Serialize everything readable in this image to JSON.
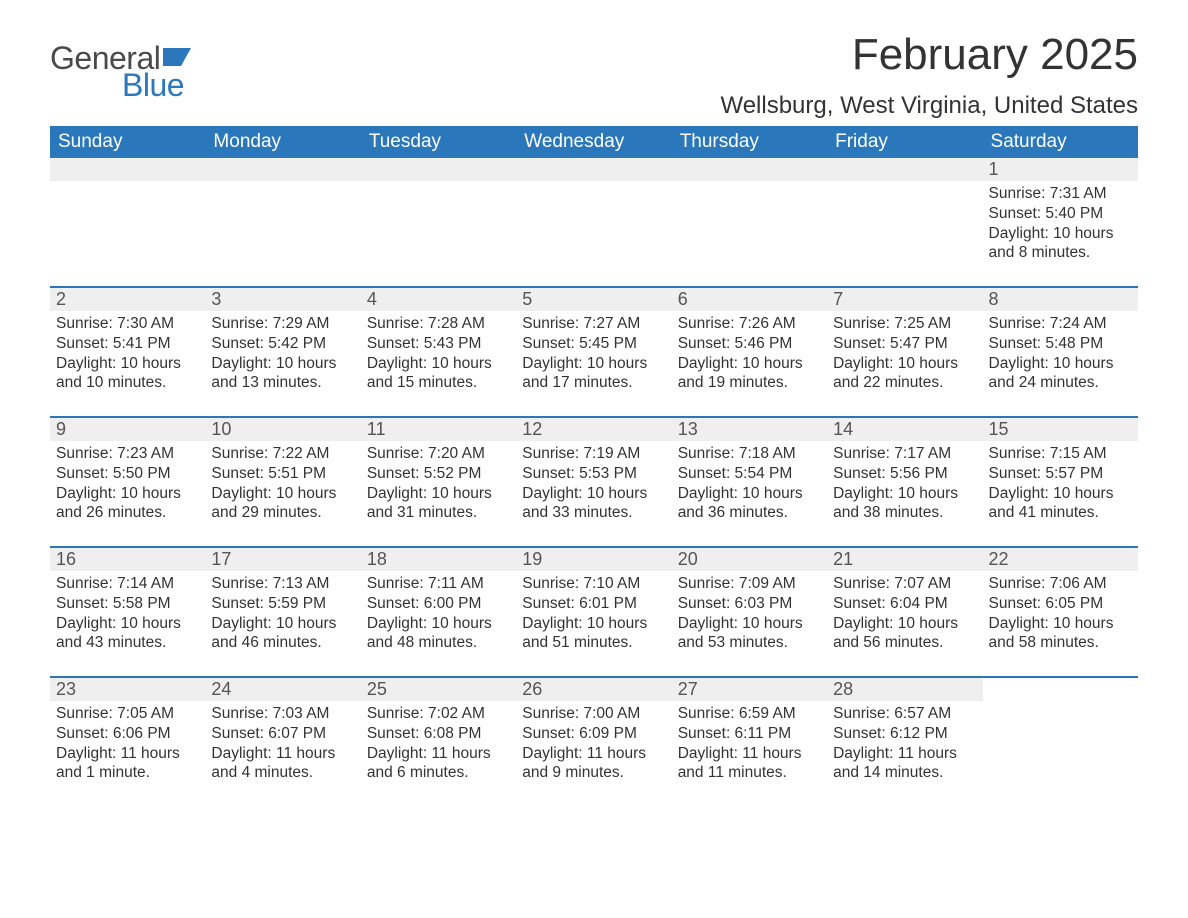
{
  "logo": {
    "general": "General",
    "blue": "Blue"
  },
  "title": "February 2025",
  "location": "Wellsburg, West Virginia, United States",
  "colors": {
    "header_bg": "#2a77bb",
    "header_text": "#ffffff",
    "daynum_bg": "#efefef",
    "text": "#333333",
    "logo_gray": "#4a4a4a",
    "logo_blue": "#2a77bb"
  },
  "weekdays": [
    "Sunday",
    "Monday",
    "Tuesday",
    "Wednesday",
    "Thursday",
    "Friday",
    "Saturday"
  ],
  "weeks": [
    [
      {
        "empty": true
      },
      {
        "empty": true
      },
      {
        "empty": true
      },
      {
        "empty": true
      },
      {
        "empty": true
      },
      {
        "empty": true
      },
      {
        "day": "1",
        "sunrise": "Sunrise: 7:31 AM",
        "sunset": "Sunset: 5:40 PM",
        "daylight": "Daylight: 10 hours and 8 minutes."
      }
    ],
    [
      {
        "day": "2",
        "sunrise": "Sunrise: 7:30 AM",
        "sunset": "Sunset: 5:41 PM",
        "daylight": "Daylight: 10 hours and 10 minutes."
      },
      {
        "day": "3",
        "sunrise": "Sunrise: 7:29 AM",
        "sunset": "Sunset: 5:42 PM",
        "daylight": "Daylight: 10 hours and 13 minutes."
      },
      {
        "day": "4",
        "sunrise": "Sunrise: 7:28 AM",
        "sunset": "Sunset: 5:43 PM",
        "daylight": "Daylight: 10 hours and 15 minutes."
      },
      {
        "day": "5",
        "sunrise": "Sunrise: 7:27 AM",
        "sunset": "Sunset: 5:45 PM",
        "daylight": "Daylight: 10 hours and 17 minutes."
      },
      {
        "day": "6",
        "sunrise": "Sunrise: 7:26 AM",
        "sunset": "Sunset: 5:46 PM",
        "daylight": "Daylight: 10 hours and 19 minutes."
      },
      {
        "day": "7",
        "sunrise": "Sunrise: 7:25 AM",
        "sunset": "Sunset: 5:47 PM",
        "daylight": "Daylight: 10 hours and 22 minutes."
      },
      {
        "day": "8",
        "sunrise": "Sunrise: 7:24 AM",
        "sunset": "Sunset: 5:48 PM",
        "daylight": "Daylight: 10 hours and 24 minutes."
      }
    ],
    [
      {
        "day": "9",
        "sunrise": "Sunrise: 7:23 AM",
        "sunset": "Sunset: 5:50 PM",
        "daylight": "Daylight: 10 hours and 26 minutes."
      },
      {
        "day": "10",
        "sunrise": "Sunrise: 7:22 AM",
        "sunset": "Sunset: 5:51 PM",
        "daylight": "Daylight: 10 hours and 29 minutes."
      },
      {
        "day": "11",
        "sunrise": "Sunrise: 7:20 AM",
        "sunset": "Sunset: 5:52 PM",
        "daylight": "Daylight: 10 hours and 31 minutes."
      },
      {
        "day": "12",
        "sunrise": "Sunrise: 7:19 AM",
        "sunset": "Sunset: 5:53 PM",
        "daylight": "Daylight: 10 hours and 33 minutes."
      },
      {
        "day": "13",
        "sunrise": "Sunrise: 7:18 AM",
        "sunset": "Sunset: 5:54 PM",
        "daylight": "Daylight: 10 hours and 36 minutes."
      },
      {
        "day": "14",
        "sunrise": "Sunrise: 7:17 AM",
        "sunset": "Sunset: 5:56 PM",
        "daylight": "Daylight: 10 hours and 38 minutes."
      },
      {
        "day": "15",
        "sunrise": "Sunrise: 7:15 AM",
        "sunset": "Sunset: 5:57 PM",
        "daylight": "Daylight: 10 hours and 41 minutes."
      }
    ],
    [
      {
        "day": "16",
        "sunrise": "Sunrise: 7:14 AM",
        "sunset": "Sunset: 5:58 PM",
        "daylight": "Daylight: 10 hours and 43 minutes."
      },
      {
        "day": "17",
        "sunrise": "Sunrise: 7:13 AM",
        "sunset": "Sunset: 5:59 PM",
        "daylight": "Daylight: 10 hours and 46 minutes."
      },
      {
        "day": "18",
        "sunrise": "Sunrise: 7:11 AM",
        "sunset": "Sunset: 6:00 PM",
        "daylight": "Daylight: 10 hours and 48 minutes."
      },
      {
        "day": "19",
        "sunrise": "Sunrise: 7:10 AM",
        "sunset": "Sunset: 6:01 PM",
        "daylight": "Daylight: 10 hours and 51 minutes."
      },
      {
        "day": "20",
        "sunrise": "Sunrise: 7:09 AM",
        "sunset": "Sunset: 6:03 PM",
        "daylight": "Daylight: 10 hours and 53 minutes."
      },
      {
        "day": "21",
        "sunrise": "Sunrise: 7:07 AM",
        "sunset": "Sunset: 6:04 PM",
        "daylight": "Daylight: 10 hours and 56 minutes."
      },
      {
        "day": "22",
        "sunrise": "Sunrise: 7:06 AM",
        "sunset": "Sunset: 6:05 PM",
        "daylight": "Daylight: 10 hours and 58 minutes."
      }
    ],
    [
      {
        "day": "23",
        "sunrise": "Sunrise: 7:05 AM",
        "sunset": "Sunset: 6:06 PM",
        "daylight": "Daylight: 11 hours and 1 minute."
      },
      {
        "day": "24",
        "sunrise": "Sunrise: 7:03 AM",
        "sunset": "Sunset: 6:07 PM",
        "daylight": "Daylight: 11 hours and 4 minutes."
      },
      {
        "day": "25",
        "sunrise": "Sunrise: 7:02 AM",
        "sunset": "Sunset: 6:08 PM",
        "daylight": "Daylight: 11 hours and 6 minutes."
      },
      {
        "day": "26",
        "sunrise": "Sunrise: 7:00 AM",
        "sunset": "Sunset: 6:09 PM",
        "daylight": "Daylight: 11 hours and 9 minutes."
      },
      {
        "day": "27",
        "sunrise": "Sunrise: 6:59 AM",
        "sunset": "Sunset: 6:11 PM",
        "daylight": "Daylight: 11 hours and 11 minutes."
      },
      {
        "day": "28",
        "sunrise": "Sunrise: 6:57 AM",
        "sunset": "Sunset: 6:12 PM",
        "daylight": "Daylight: 11 hours and 14 minutes."
      },
      {
        "empty": true
      }
    ]
  ]
}
